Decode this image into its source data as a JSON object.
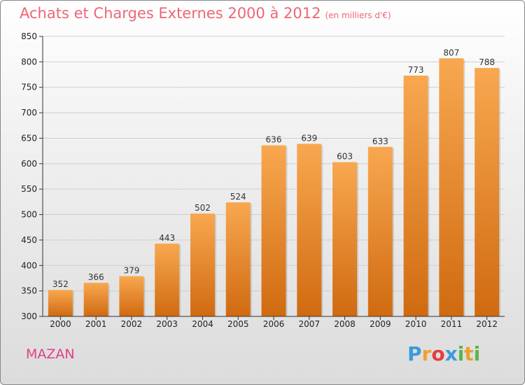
{
  "title": "Achats et Charges Externes 2000 à 2012",
  "unit": "(en milliers d'€)",
  "town": "MAZAN",
  "brand": {
    "letters": [
      "P",
      "r",
      "o",
      "x",
      "i",
      "t",
      "i"
    ],
    "colors": [
      "#3a9bd9",
      "#f0a030",
      "#e83c3c",
      "#3a9bd9",
      "#59b54a",
      "#e8a030",
      "#59b54a"
    ]
  },
  "colors": {
    "bar_light": "#f8a850",
    "bar_dark": "#d06a10",
    "title": "#ee6677",
    "town": "#e0408a"
  },
  "chart_data": {
    "type": "bar",
    "title": "Achats et Charges Externes 2000 à 2012",
    "subtitle": "(en milliers d'€)",
    "categories": [
      "2000",
      "2001",
      "2002",
      "2003",
      "2004",
      "2005",
      "2006",
      "2007",
      "2008",
      "2009",
      "2010",
      "2011",
      "2012"
    ],
    "values": [
      352,
      366,
      379,
      443,
      502,
      524,
      636,
      639,
      603,
      633,
      773,
      807,
      788
    ],
    "ylim": [
      300,
      850
    ],
    "yticks": [
      300,
      350,
      400,
      450,
      500,
      550,
      600,
      650,
      700,
      750,
      800,
      850
    ],
    "xlabel": "",
    "ylabel": "",
    "grid": true
  }
}
